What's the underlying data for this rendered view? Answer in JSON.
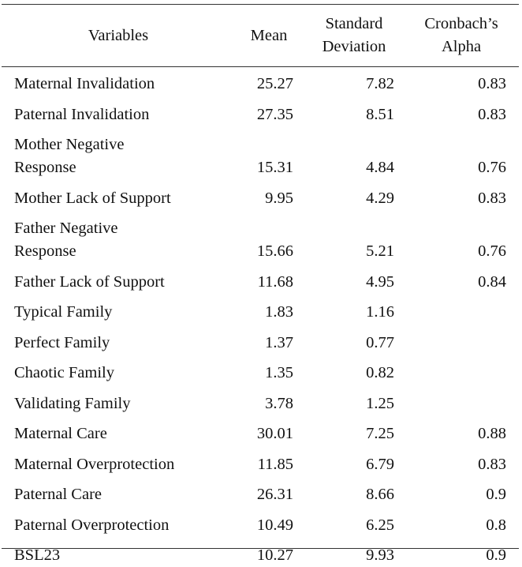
{
  "table": {
    "headers": {
      "variables": [
        "Variables"
      ],
      "mean": [
        "Mean"
      ],
      "sd": [
        "Standard",
        "Deviation"
      ],
      "alpha": [
        "Cronbach’s",
        "Alpha"
      ]
    },
    "rows": [
      {
        "label": [
          "Maternal Invalidation"
        ],
        "mean": "25.27",
        "sd": "7.82",
        "alpha": "0.83"
      },
      {
        "label": [
          "Paternal Invalidation"
        ],
        "mean": "27.35",
        "sd": "8.51",
        "alpha": "0.83"
      },
      {
        "label": [
          "Mother Negative",
          "Response"
        ],
        "mean": "15.31",
        "sd": "4.84",
        "alpha": "0.76"
      },
      {
        "label": [
          "Mother Lack of Support"
        ],
        "mean": "9.95",
        "sd": "4.29",
        "alpha": "0.83"
      },
      {
        "label": [
          "Father Negative",
          "Response"
        ],
        "mean": "15.66",
        "sd": "5.21",
        "alpha": "0.76"
      },
      {
        "label": [
          "Father Lack of Support"
        ],
        "mean": "11.68",
        "sd": "4.95",
        "alpha": "0.84"
      },
      {
        "label": [
          "Typical Family"
        ],
        "mean": "1.83",
        "sd": "1.16",
        "alpha": ""
      },
      {
        "label": [
          "Perfect Family"
        ],
        "mean": "1.37",
        "sd": "0.77",
        "alpha": ""
      },
      {
        "label": [
          "Chaotic Family"
        ],
        "mean": "1.35",
        "sd": "0.82",
        "alpha": ""
      },
      {
        "label": [
          "Validating Family"
        ],
        "mean": "3.78",
        "sd": "1.25",
        "alpha": ""
      },
      {
        "label": [
          "Maternal Care"
        ],
        "mean": "30.01",
        "sd": "7.25",
        "alpha": "0.88"
      },
      {
        "label": [
          "Maternal Overprotection"
        ],
        "mean": "11.85",
        "sd": "6.79",
        "alpha": "0.83"
      },
      {
        "label": [
          "Paternal Care"
        ],
        "mean": "26.31",
        "sd": "8.66",
        "alpha": "0.9"
      },
      {
        "label": [
          "Paternal Overprotection"
        ],
        "mean": "10.49",
        "sd": "6.25",
        "alpha": "0.8"
      },
      {
        "label": [
          "BSL23"
        ],
        "mean": "10.27",
        "sd": "9.93",
        "alpha": "0.9"
      }
    ]
  }
}
